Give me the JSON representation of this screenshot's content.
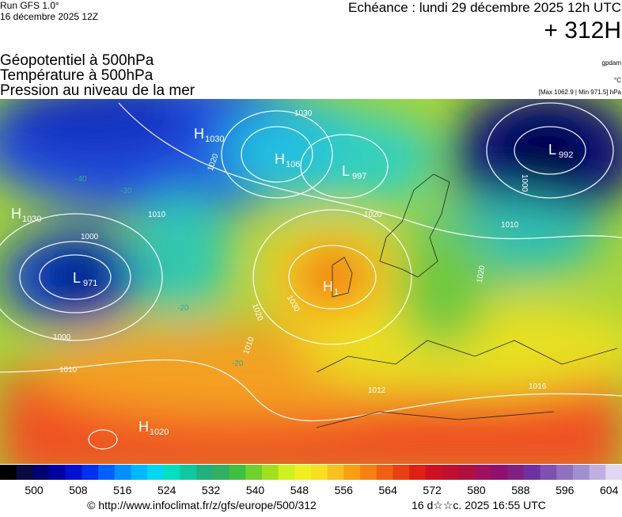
{
  "header": {
    "run": "Run GFS 1.0°",
    "run_date": "16 décembre 2025 12Z",
    "echeance": "Echéance : lundi 29 décembre 2025 12h UTC",
    "lead": "+ 312H",
    "fields": [
      "Géopotentiel à 500hPa",
      "Température à 500hPa",
      "Pression au niveau de la mer"
    ],
    "units": [
      "gpdam",
      "°C",
      "[Max 1062.9 | Min 971.5] hPa"
    ]
  },
  "centers": [
    {
      "letter": "H",
      "value": "1030"
    },
    {
      "letter": "H",
      "value": "106"
    },
    {
      "letter": "L",
      "value": "997"
    },
    {
      "letter": "L",
      "value": "992"
    },
    {
      "letter": "H",
      "value": "1030"
    },
    {
      "letter": "L",
      "value": "971"
    },
    {
      "letter": "H",
      "value": "1"
    },
    {
      "letter": "H",
      "value": "1020"
    }
  ],
  "contour_labels": [
    "1030",
    "1020",
    "1010",
    "1000",
    "1020",
    "1010",
    "1000",
    "1020",
    "1030",
    "1020",
    "1010",
    "1000",
    "1010",
    "1012",
    "1016",
    "-40",
    "-30",
    "-20",
    "-20"
  ],
  "scale": {
    "labels": [
      "500",
      "508",
      "516",
      "524",
      "532",
      "540",
      "548",
      "556",
      "564",
      "572",
      "580",
      "588",
      "596",
      "604"
    ]
  },
  "footer": {
    "source": "© http://www.infoclimat.fr/z/gfs/europe/500/312",
    "generated": "16 d☆☆c. 2025 16:55 UTC"
  }
}
